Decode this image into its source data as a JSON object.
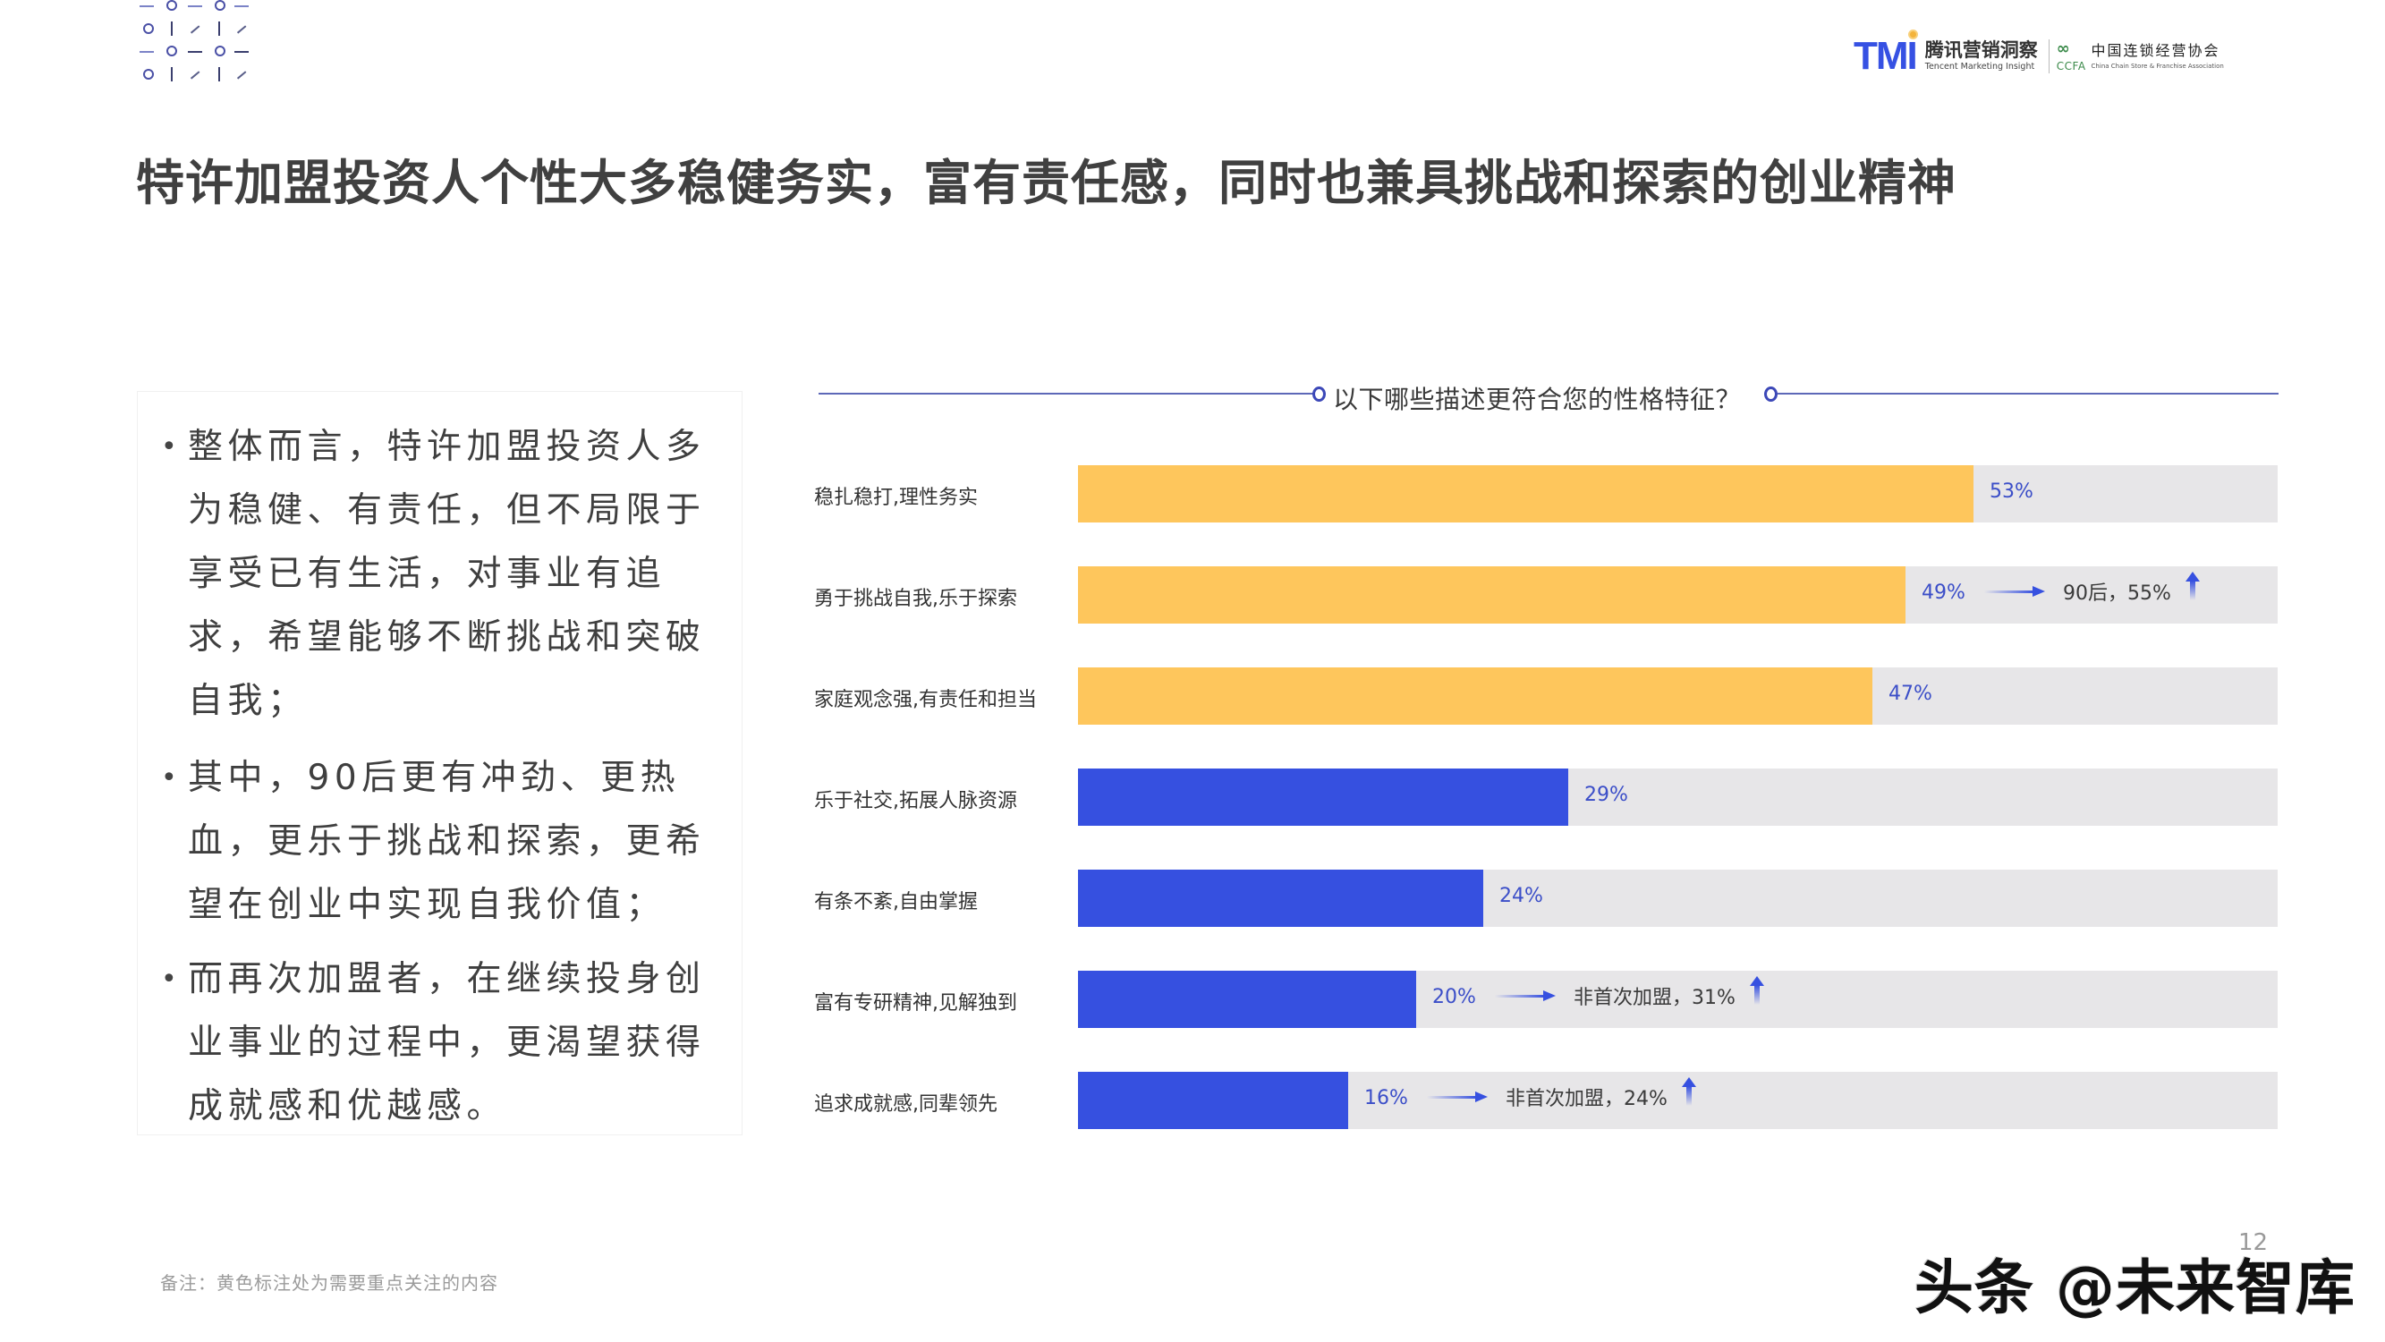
{
  "header": {
    "page_title": "特许加盟投资人个性大多稳健务实，富有责任感，同时也兼具挑战和探索的创业精神",
    "brand_tmi": {
      "logo": "TMI",
      "name_cn": "腾讯营销洞察",
      "name_en": "Tencent Marketing Insight"
    },
    "brand_ccfa": {
      "logo_mark": "∞",
      "abbr": "CCFA",
      "name_cn": "中国连锁经营协会",
      "name_en": "China Chain Store & Franchise Association"
    }
  },
  "left_panel": {
    "bullets": [
      "整体而言，特许加盟投资人多为稳健、有责任，但不局限于享受已有生活，对事业有追求，希望能够不断挑战和突破自我；",
      "其中，90后更有冲劲、更热血，更乐于挑战和探索，更希望在创业中实现自我价值；",
      "而再次加盟者，在继续投身创业事业的过程中，更渴望获得成就感和优越感。"
    ]
  },
  "chart_data": {
    "type": "bar",
    "orientation": "horizontal",
    "title": "以下哪些描述更符合您的性格特征？",
    "xlabel": "",
    "ylabel": "",
    "xlim": [
      0,
      100
    ],
    "grid": false,
    "legend": null,
    "categories": [
      "稳扎稳打,理性务实",
      "勇于挑战自我,乐于探索",
      "家庭观念强,有责任和担当",
      "乐于社交,拓展人脉资源",
      "有条不紊,自由掌握",
      "富有专研精神,见解独到",
      "追求成就感,同辈领先"
    ],
    "values": [
      53,
      49,
      47,
      29,
      24,
      20,
      16
    ],
    "value_labels": [
      "53%",
      "49%",
      "47%",
      "29%",
      "24%",
      "20%",
      "16%"
    ],
    "highlighted": [
      true,
      true,
      true,
      false,
      false,
      false,
      false
    ],
    "annotations": [
      {
        "category": "勇于挑战自我,乐于探索",
        "text": "90后，55%",
        "segment": "90后",
        "value": 55,
        "direction": "up"
      },
      {
        "category": "富有专研精神,见解独到",
        "text": "非首次加盟，31%",
        "segment": "非首次加盟",
        "value": 31,
        "direction": "up"
      },
      {
        "category": "追求成就感,同辈领先",
        "text": "非首次加盟，24%",
        "segment": "非首次加盟",
        "value": 24,
        "direction": "up"
      }
    ],
    "colors": {
      "highlight": "#fec65c",
      "normal": "#3650e0",
      "track": "#e7e6e8",
      "value_text": "#3b4ec8"
    }
  },
  "footer": {
    "note": "备注：黄色标注处为需要重点关注的内容",
    "page_number": "12",
    "watermark": "头条 @未来智库"
  }
}
